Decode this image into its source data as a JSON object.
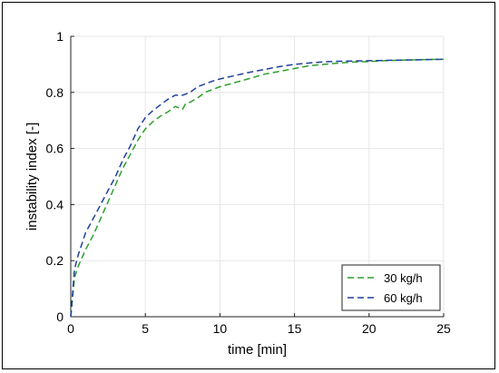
{
  "chart_data": {
    "type": "line",
    "xlabel": "time [min]",
    "ylabel": "instability index [-]",
    "xlim": [
      0,
      25
    ],
    "ylim": [
      0,
      1
    ],
    "xticks": [
      0,
      5,
      10,
      15,
      20,
      25
    ],
    "yticks": [
      0,
      0.2,
      0.4,
      0.6,
      0.8,
      1
    ],
    "xtick_labels": [
      "0",
      "5",
      "10",
      "15",
      "20",
      "25"
    ],
    "ytick_labels": [
      "0",
      "0.2",
      "0.4",
      "0.6",
      "0.8",
      "1"
    ],
    "grid": true,
    "legend_position": "bottom-right",
    "series": [
      {
        "name": "30 kg/h",
        "color": "#2ca02c",
        "line_style": "dashed",
        "x": [
          0,
          0.25,
          0.5,
          1,
          1.5,
          2,
          2.5,
          3,
          3.5,
          4,
          4.5,
          5,
          5.5,
          6,
          6.5,
          7,
          7.5,
          7.7,
          8,
          8.5,
          9,
          9.5,
          10,
          11,
          12,
          13,
          14,
          15,
          16,
          17,
          18,
          19,
          20,
          21,
          22,
          23,
          24,
          25
        ],
        "y": [
          0.0,
          0.14,
          0.18,
          0.24,
          0.29,
          0.35,
          0.41,
          0.47,
          0.53,
          0.58,
          0.63,
          0.67,
          0.695,
          0.715,
          0.73,
          0.75,
          0.74,
          0.76,
          0.765,
          0.78,
          0.8,
          0.81,
          0.82,
          0.835,
          0.85,
          0.865,
          0.875,
          0.885,
          0.895,
          0.9,
          0.905,
          0.908,
          0.91,
          0.913,
          0.915,
          0.916,
          0.917,
          0.918
        ]
      },
      {
        "name": "60 kg/h",
        "color": "#1f3f9f",
        "line_style": "dashed",
        "x": [
          0,
          0.25,
          0.5,
          1,
          1.5,
          2,
          2.5,
          3,
          3.5,
          4,
          4.5,
          5,
          5.5,
          6,
          6.5,
          7,
          7.5,
          8,
          8.5,
          9,
          9.5,
          10,
          11,
          12,
          13,
          14,
          15,
          16,
          17,
          18,
          19,
          20,
          21,
          22,
          23,
          24,
          25
        ],
        "y": [
          0.0,
          0.17,
          0.22,
          0.3,
          0.35,
          0.4,
          0.45,
          0.5,
          0.56,
          0.61,
          0.67,
          0.71,
          0.735,
          0.755,
          0.775,
          0.79,
          0.79,
          0.8,
          0.82,
          0.83,
          0.84,
          0.848,
          0.86,
          0.872,
          0.882,
          0.892,
          0.9,
          0.905,
          0.909,
          0.911,
          0.912,
          0.913,
          0.914,
          0.915,
          0.916,
          0.917,
          0.918
        ]
      }
    ]
  }
}
